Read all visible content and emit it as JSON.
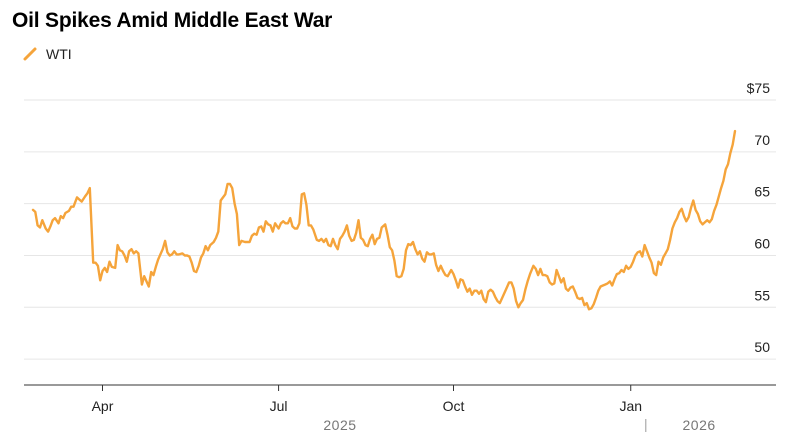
{
  "title": "Oil Spikes Amid Middle East War",
  "legend": {
    "label": "WTI"
  },
  "colors": {
    "line": "#f5a43b",
    "grid": "#e6e6e6",
    "axis": "#333333",
    "text": "#222222",
    "year": "#777777"
  },
  "chart_data": {
    "type": "line",
    "title": "Oil Spikes Amid Middle East War",
    "xlabel": "",
    "ylabel": "",
    "ylim": [
      47.5,
      75
    ],
    "xlim": [
      0,
      63
    ],
    "y_ticks": [
      {
        "value": 75,
        "label": "$75"
      },
      {
        "value": 70,
        "label": "70"
      },
      {
        "value": 65,
        "label": "65"
      },
      {
        "value": 60,
        "label": "60"
      },
      {
        "value": 55,
        "label": "55"
      },
      {
        "value": 50,
        "label": "50"
      }
    ],
    "x_ticks": [
      {
        "value": 6,
        "label": "Apr"
      },
      {
        "value": 21.2,
        "label": "Jul"
      },
      {
        "value": 36.3,
        "label": "Oct"
      },
      {
        "value": 51.6,
        "label": "Jan"
      }
    ],
    "year_labels": [
      {
        "value": 26.5,
        "label": "2025"
      },
      {
        "value": 57.5,
        "label": "2026"
      }
    ],
    "year_separator": 52.9,
    "series": [
      {
        "name": "WTI",
        "points": [
          [
            0.0,
            64.4
          ],
          [
            0.2,
            64.2
          ],
          [
            0.4,
            62.9
          ],
          [
            0.6,
            62.7
          ],
          [
            0.8,
            63.4
          ],
          [
            1.1,
            62.6
          ],
          [
            1.3,
            62.3
          ],
          [
            1.5,
            62.8
          ],
          [
            1.7,
            63.4
          ],
          [
            1.9,
            63.6
          ],
          [
            2.2,
            63.1
          ],
          [
            2.4,
            63.8
          ],
          [
            2.6,
            63.6
          ],
          [
            2.8,
            64.1
          ],
          [
            3.1,
            64.3
          ],
          [
            3.3,
            64.7
          ],
          [
            3.5,
            64.7
          ],
          [
            3.8,
            65.6
          ],
          [
            4.0,
            65.4
          ],
          [
            4.2,
            65.2
          ],
          [
            4.5,
            65.7
          ],
          [
            4.7,
            66.0
          ],
          [
            4.9,
            66.5
          ],
          [
            5.2,
            59.3
          ],
          [
            5.4,
            59.3
          ],
          [
            5.6,
            59.0
          ],
          [
            5.8,
            57.6
          ],
          [
            6.0,
            58.5
          ],
          [
            6.2,
            58.8
          ],
          [
            6.4,
            58.4
          ],
          [
            6.6,
            59.4
          ],
          [
            6.8,
            58.9
          ],
          [
            7.1,
            58.8
          ],
          [
            7.3,
            61.0
          ],
          [
            7.5,
            60.5
          ],
          [
            7.7,
            60.4
          ],
          [
            7.9,
            60.0
          ],
          [
            8.1,
            59.4
          ],
          [
            8.3,
            60.4
          ],
          [
            8.5,
            60.6
          ],
          [
            8.7,
            60.2
          ],
          [
            8.9,
            60.4
          ],
          [
            9.1,
            60.2
          ],
          [
            9.4,
            57.2
          ],
          [
            9.6,
            58.0
          ],
          [
            9.8,
            57.5
          ],
          [
            10.0,
            57.0
          ],
          [
            10.2,
            58.4
          ],
          [
            10.4,
            58.1
          ],
          [
            10.6,
            58.9
          ],
          [
            10.8,
            59.6
          ],
          [
            11.0,
            60.1
          ],
          [
            11.2,
            60.6
          ],
          [
            11.4,
            61.4
          ],
          [
            11.6,
            60.3
          ],
          [
            11.8,
            60.0
          ],
          [
            12.0,
            60.1
          ],
          [
            12.2,
            60.4
          ],
          [
            12.4,
            60.1
          ],
          [
            12.6,
            60.1
          ],
          [
            12.9,
            60.2
          ],
          [
            13.1,
            60.0
          ],
          [
            13.3,
            60.0
          ],
          [
            13.5,
            59.9
          ],
          [
            13.7,
            59.3
          ],
          [
            13.9,
            58.5
          ],
          [
            14.1,
            58.4
          ],
          [
            14.3,
            59.0
          ],
          [
            14.5,
            59.8
          ],
          [
            14.7,
            60.2
          ],
          [
            14.9,
            60.9
          ],
          [
            15.1,
            60.5
          ],
          [
            15.3,
            61.0
          ],
          [
            15.6,
            61.3
          ],
          [
            15.8,
            61.7
          ],
          [
            16.0,
            62.3
          ],
          [
            16.2,
            65.3
          ],
          [
            16.4,
            65.6
          ],
          [
            16.6,
            65.9
          ],
          [
            16.8,
            66.9
          ],
          [
            17.0,
            66.9
          ],
          [
            17.2,
            66.5
          ],
          [
            17.4,
            65.0
          ],
          [
            17.6,
            64.0
          ],
          [
            17.8,
            61.0
          ],
          [
            18.0,
            61.4
          ],
          [
            18.3,
            61.3
          ],
          [
            18.5,
            61.3
          ],
          [
            18.7,
            61.3
          ],
          [
            18.9,
            61.9
          ],
          [
            19.1,
            62.1
          ],
          [
            19.3,
            62.0
          ],
          [
            19.5,
            62.7
          ],
          [
            19.7,
            62.8
          ],
          [
            19.9,
            62.3
          ],
          [
            20.1,
            63.3
          ],
          [
            20.3,
            63.0
          ],
          [
            20.5,
            62.9
          ],
          [
            20.7,
            62.3
          ],
          [
            20.9,
            63.1
          ],
          [
            21.2,
            62.6
          ],
          [
            21.4,
            63.1
          ],
          [
            21.6,
            63.3
          ],
          [
            21.8,
            63.1
          ],
          [
            22.0,
            63.1
          ],
          [
            22.2,
            63.6
          ],
          [
            22.4,
            62.8
          ],
          [
            22.6,
            62.6
          ],
          [
            22.8,
            62.6
          ],
          [
            23.0,
            63.1
          ],
          [
            23.2,
            65.9
          ],
          [
            23.4,
            66.0
          ],
          [
            23.6,
            64.9
          ],
          [
            23.8,
            62.9
          ],
          [
            24.0,
            62.9
          ],
          [
            24.2,
            62.5
          ],
          [
            24.5,
            61.5
          ],
          [
            24.7,
            61.4
          ],
          [
            24.9,
            61.6
          ],
          [
            25.1,
            61.3
          ],
          [
            25.3,
            61.6
          ],
          [
            25.5,
            61.0
          ],
          [
            25.7,
            60.9
          ],
          [
            25.9,
            61.6
          ],
          [
            26.1,
            61.0
          ],
          [
            26.3,
            60.6
          ],
          [
            26.5,
            61.6
          ],
          [
            26.7,
            61.9
          ],
          [
            26.9,
            62.3
          ],
          [
            27.1,
            62.9
          ],
          [
            27.3,
            61.9
          ],
          [
            27.5,
            61.4
          ],
          [
            27.7,
            61.5
          ],
          [
            27.9,
            62.2
          ],
          [
            28.1,
            63.4
          ],
          [
            28.3,
            61.7
          ],
          [
            28.5,
            61.5
          ],
          [
            28.7,
            61.0
          ],
          [
            28.9,
            60.9
          ],
          [
            29.1,
            61.6
          ],
          [
            29.3,
            62.0
          ],
          [
            29.5,
            61.1
          ],
          [
            29.7,
            61.6
          ],
          [
            29.9,
            61.7
          ],
          [
            30.1,
            62.7
          ],
          [
            30.4,
            63.0
          ],
          [
            30.6,
            62.0
          ],
          [
            30.8,
            60.8
          ],
          [
            31.0,
            60.5
          ],
          [
            31.2,
            59.5
          ],
          [
            31.4,
            58.0
          ],
          [
            31.6,
            57.9
          ],
          [
            31.8,
            58.0
          ],
          [
            32.0,
            58.7
          ],
          [
            32.2,
            60.5
          ],
          [
            32.4,
            61.1
          ],
          [
            32.6,
            61.0
          ],
          [
            32.8,
            61.3
          ],
          [
            33.0,
            60.6
          ],
          [
            33.2,
            60.1
          ],
          [
            33.4,
            60.4
          ],
          [
            33.6,
            59.7
          ],
          [
            33.8,
            59.4
          ],
          [
            34.0,
            60.3
          ],
          [
            34.2,
            60.1
          ],
          [
            34.4,
            60.1
          ],
          [
            34.6,
            60.2
          ],
          [
            34.8,
            59.1
          ],
          [
            35.0,
            58.5
          ],
          [
            35.2,
            59.0
          ],
          [
            35.4,
            58.5
          ],
          [
            35.6,
            58.1
          ],
          [
            35.8,
            58.0
          ],
          [
            36.1,
            58.6
          ],
          [
            36.3,
            58.2
          ],
          [
            36.5,
            57.6
          ],
          [
            36.7,
            56.9
          ],
          [
            36.9,
            57.7
          ],
          [
            37.1,
            57.6
          ],
          [
            37.3,
            57.0
          ],
          [
            37.5,
            56.5
          ],
          [
            37.7,
            56.8
          ],
          [
            37.9,
            56.2
          ],
          [
            38.1,
            56.6
          ],
          [
            38.3,
            56.6
          ],
          [
            38.5,
            56.3
          ],
          [
            38.7,
            56.6
          ],
          [
            38.9,
            55.8
          ],
          [
            39.1,
            55.5
          ],
          [
            39.3,
            56.5
          ],
          [
            39.5,
            56.7
          ],
          [
            39.7,
            56.5
          ],
          [
            39.9,
            56.0
          ],
          [
            40.1,
            55.6
          ],
          [
            40.3,
            55.4
          ],
          [
            40.5,
            55.9
          ],
          [
            40.7,
            56.4
          ],
          [
            40.9,
            56.9
          ],
          [
            41.1,
            57.4
          ],
          [
            41.3,
            57.4
          ],
          [
            41.5,
            56.8
          ],
          [
            41.7,
            55.6
          ],
          [
            41.9,
            55.0
          ],
          [
            42.1,
            55.4
          ],
          [
            42.3,
            55.7
          ],
          [
            42.5,
            56.7
          ],
          [
            42.7,
            57.5
          ],
          [
            42.9,
            58.2
          ],
          [
            43.2,
            59.0
          ],
          [
            43.4,
            58.7
          ],
          [
            43.6,
            58.1
          ],
          [
            43.8,
            58.7
          ],
          [
            44.0,
            58.1
          ],
          [
            44.2,
            58.1
          ],
          [
            44.4,
            58.0
          ],
          [
            44.6,
            57.4
          ],
          [
            44.8,
            57.2
          ],
          [
            45.0,
            57.3
          ],
          [
            45.2,
            58.6
          ],
          [
            45.4,
            58.0
          ],
          [
            45.6,
            57.4
          ],
          [
            45.8,
            57.8
          ],
          [
            46.0,
            56.8
          ],
          [
            46.2,
            56.6
          ],
          [
            46.4,
            56.9
          ],
          [
            46.6,
            57.0
          ],
          [
            46.8,
            56.5
          ],
          [
            47.0,
            55.9
          ],
          [
            47.2,
            55.8
          ],
          [
            47.4,
            55.9
          ],
          [
            47.6,
            55.2
          ],
          [
            47.8,
            55.4
          ],
          [
            48.0,
            54.8
          ],
          [
            48.2,
            54.9
          ],
          [
            48.4,
            55.3
          ],
          [
            48.6,
            55.9
          ],
          [
            48.8,
            56.6
          ],
          [
            49.0,
            57.0
          ],
          [
            49.2,
            57.1
          ],
          [
            49.4,
            57.2
          ],
          [
            49.6,
            57.3
          ],
          [
            49.8,
            57.5
          ],
          [
            50.0,
            57.1
          ],
          [
            50.2,
            57.7
          ],
          [
            50.4,
            58.2
          ],
          [
            50.6,
            58.3
          ],
          [
            50.8,
            58.6
          ],
          [
            51.0,
            58.4
          ],
          [
            51.2,
            59.0
          ],
          [
            51.4,
            58.7
          ],
          [
            51.6,
            58.9
          ],
          [
            51.8,
            59.4
          ],
          [
            52.0,
            60.0
          ],
          [
            52.2,
            60.3
          ],
          [
            52.4,
            60.4
          ],
          [
            52.6,
            59.9
          ],
          [
            52.8,
            61.0
          ],
          [
            53.0,
            60.4
          ],
          [
            53.2,
            59.8
          ],
          [
            53.4,
            59.3
          ],
          [
            53.6,
            58.3
          ],
          [
            53.8,
            58.1
          ],
          [
            54.0,
            59.4
          ],
          [
            54.2,
            59.1
          ],
          [
            54.4,
            59.8
          ],
          [
            54.6,
            60.2
          ],
          [
            54.8,
            60.6
          ],
          [
            55.0,
            61.5
          ],
          [
            55.2,
            62.6
          ],
          [
            55.4,
            63.2
          ],
          [
            55.6,
            63.6
          ],
          [
            55.8,
            64.2
          ],
          [
            56.0,
            64.5
          ],
          [
            56.2,
            63.8
          ],
          [
            56.4,
            63.3
          ],
          [
            56.6,
            63.7
          ],
          [
            56.8,
            64.6
          ],
          [
            57.0,
            65.3
          ],
          [
            57.2,
            64.4
          ],
          [
            57.4,
            64.0
          ],
          [
            57.6,
            63.3
          ],
          [
            57.8,
            63.0
          ],
          [
            58.0,
            63.2
          ],
          [
            58.2,
            63.4
          ],
          [
            58.4,
            63.2
          ],
          [
            58.6,
            63.5
          ],
          [
            58.8,
            64.3
          ],
          [
            59.0,
            64.9
          ],
          [
            59.2,
            65.7
          ],
          [
            59.4,
            66.5
          ],
          [
            59.6,
            67.2
          ],
          [
            59.8,
            68.3
          ],
          [
            60.0,
            68.8
          ],
          [
            60.2,
            69.9
          ],
          [
            60.4,
            70.7
          ],
          [
            60.6,
            72.0
          ]
        ]
      }
    ]
  }
}
